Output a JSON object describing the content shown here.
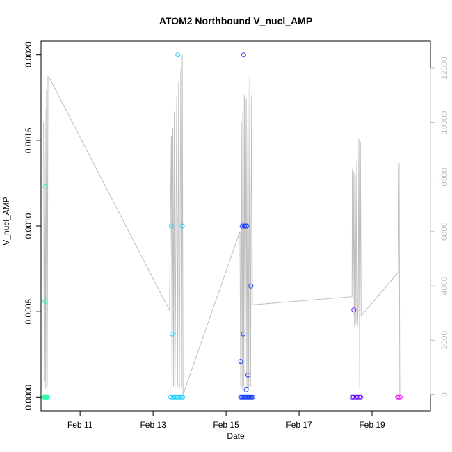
{
  "chart_data": {
    "type": "scatter",
    "title": "ATOM2 Northbound V_nucl_AMP",
    "xlabel": "Date",
    "ylabel": "V_nucl_AMP",
    "xlim_days": [
      9.93,
      20.6
    ],
    "ylim": [
      -8e-05,
      0.00208
    ],
    "y2lim": [
      -600,
      13000
    ],
    "x_ticks": [
      {
        "day": 11,
        "label": "Feb 11"
      },
      {
        "day": 13,
        "label": "Feb 13"
      },
      {
        "day": 15,
        "label": "Feb 15"
      },
      {
        "day": 17,
        "label": "Feb 17"
      },
      {
        "day": 19,
        "label": "Feb 19"
      }
    ],
    "y_ticks": [
      {
        "value": 0.0,
        "label": "0.0000"
      },
      {
        "value": 0.0005,
        "label": "0.0005"
      },
      {
        "value": 0.001,
        "label": "0.0010"
      },
      {
        "value": 0.0015,
        "label": "0.0015"
      },
      {
        "value": 0.002,
        "label": "0.0020"
      }
    ],
    "y2_ticks": [
      {
        "value": 0,
        "label": "0"
      },
      {
        "value": 2000,
        "label": "2000"
      },
      {
        "value": 4000,
        "label": "4000"
      },
      {
        "value": 6000,
        "label": "6000"
      },
      {
        "value": 8000,
        "label": "8000"
      },
      {
        "value": 10000,
        "label": "10000"
      },
      {
        "value": 12000,
        "label": "12000"
      }
    ],
    "secondary_line_color": "#bebebe",
    "secondary_line": [
      [
        10.0,
        10000
      ],
      [
        10.02,
        500
      ],
      [
        10.04,
        10500
      ],
      [
        10.06,
        200
      ],
      [
        10.08,
        11200
      ],
      [
        10.1,
        300
      ],
      [
        10.12,
        11700
      ],
      [
        10.14,
        11700
      ],
      [
        13.45,
        3100
      ],
      [
        13.5,
        9500
      ],
      [
        13.52,
        200
      ],
      [
        13.54,
        9800
      ],
      [
        13.56,
        300
      ],
      [
        13.58,
        10400
      ],
      [
        13.6,
        200
      ],
      [
        13.65,
        11000
      ],
      [
        13.67,
        300
      ],
      [
        13.7,
        11500
      ],
      [
        13.72,
        200
      ],
      [
        13.76,
        12000
      ],
      [
        13.78,
        300
      ],
      [
        13.8,
        12500
      ],
      [
        13.82,
        0
      ],
      [
        15.38,
        6000
      ],
      [
        15.4,
        300
      ],
      [
        15.42,
        10000
      ],
      [
        15.44,
        200
      ],
      [
        15.46,
        10400
      ],
      [
        15.48,
        300
      ],
      [
        15.5,
        11000
      ],
      [
        15.52,
        200
      ],
      [
        15.55,
        10900
      ],
      [
        15.57,
        300
      ],
      [
        15.6,
        11700
      ],
      [
        15.62,
        200
      ],
      [
        15.65,
        11600
      ],
      [
        15.67,
        300
      ],
      [
        15.7,
        11000
      ],
      [
        15.72,
        3300
      ],
      [
        18.45,
        3600
      ],
      [
        18.46,
        8300
      ],
      [
        18.48,
        2900
      ],
      [
        18.5,
        8200
      ],
      [
        18.52,
        2500
      ],
      [
        18.54,
        8100
      ],
      [
        18.56,
        2600
      ],
      [
        18.58,
        8600
      ],
      [
        18.6,
        2500
      ],
      [
        18.62,
        3300
      ],
      [
        18.64,
        9400
      ],
      [
        18.66,
        200
      ],
      [
        18.68,
        9300
      ],
      [
        18.7,
        2900
      ],
      [
        19.72,
        4500
      ],
      [
        19.74,
        8500
      ],
      [
        19.76,
        0
      ]
    ],
    "series": [
      {
        "color": "#1fffa6",
        "points": [
          [
            10.01,
            0
          ],
          [
            10.03,
            0
          ],
          [
            10.05,
            0
          ],
          [
            10.07,
            0
          ],
          [
            10.09,
            0
          ],
          [
            10.11,
            0
          ],
          [
            10.04,
            0.00056
          ],
          [
            10.05,
            0.00123
          ]
        ]
      },
      {
        "color": "#1fcfff",
        "points": [
          [
            13.48,
            0
          ],
          [
            13.52,
            0
          ],
          [
            13.56,
            0
          ],
          [
            13.6,
            0
          ],
          [
            13.63,
            0
          ],
          [
            13.66,
            0
          ],
          [
            13.7,
            0
          ],
          [
            13.74,
            0
          ],
          [
            13.78,
            0
          ],
          [
            13.81,
            0
          ],
          [
            13.5,
            0.001
          ],
          [
            13.52,
            0.00037
          ],
          [
            13.68,
            0.002
          ],
          [
            13.8,
            0.001
          ]
        ]
      },
      {
        "color": "#1a3fff",
        "points": [
          [
            15.4,
            0
          ],
          [
            15.43,
            0
          ],
          [
            15.46,
            0
          ],
          [
            15.49,
            0
          ],
          [
            15.52,
            0
          ],
          [
            15.55,
            0
          ],
          [
            15.58,
            0
          ],
          [
            15.61,
            0
          ],
          [
            15.64,
            0
          ],
          [
            15.67,
            0
          ],
          [
            15.7,
            0
          ],
          [
            15.73,
            0
          ],
          [
            15.4,
            0.00021
          ],
          [
            15.44,
            0.001
          ],
          [
            15.47,
            0.00037
          ],
          [
            15.48,
            0.002
          ],
          [
            15.5,
            0.001
          ],
          [
            15.54,
            0.001
          ],
          [
            15.57,
            0.001
          ],
          [
            15.55,
            4.5e-05
          ],
          [
            15.6,
            0.00013
          ],
          [
            15.68,
            0.00065
          ]
        ]
      },
      {
        "color": "#6a10ff",
        "points": [
          [
            18.45,
            0
          ],
          [
            18.49,
            0
          ],
          [
            18.53,
            0
          ],
          [
            18.57,
            0
          ],
          [
            18.61,
            0
          ],
          [
            18.65,
            0
          ],
          [
            18.69,
            0
          ],
          [
            18.5,
            0.00051
          ]
        ]
      },
      {
        "color": "#ff00ff",
        "points": [
          [
            19.7,
            0
          ],
          [
            19.74,
            0
          ],
          [
            19.77,
            0
          ]
        ]
      }
    ]
  }
}
